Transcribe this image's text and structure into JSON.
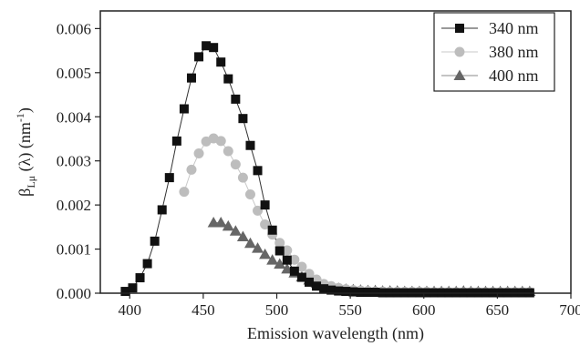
{
  "chart_data": {
    "type": "scatter",
    "title": "",
    "xlabel": "Emission wavelength (nm)",
    "ylabel": {
      "main": "β",
      "sub": "Lμ",
      "rest": " (λ) (nm",
      "sup": "-1",
      "close": ")"
    },
    "xlim": [
      380,
      700
    ],
    "ylim": [
      0,
      0.0064
    ],
    "x_ticks": [
      400,
      450,
      500,
      550,
      600,
      650,
      700
    ],
    "y_ticks": [
      0.0,
      0.001,
      0.002,
      0.003,
      0.004,
      0.005,
      0.006
    ],
    "y_tick_labels": [
      "0.000",
      "0.001",
      "0.002",
      "0.003",
      "0.004",
      "0.005",
      "0.006"
    ],
    "grid": false,
    "legend_position": "top-right",
    "series": [
      {
        "name": "340 nm",
        "marker": "square",
        "color": "#111111",
        "line_color": "#333333",
        "x": [
          397,
          402,
          407,
          412,
          417,
          422,
          427,
          432,
          437,
          442,
          447,
          452,
          457,
          462,
          467,
          472,
          477,
          482,
          487,
          492,
          497,
          502,
          507,
          512,
          517,
          522,
          527,
          532,
          537,
          542,
          547,
          552,
          557,
          562,
          567,
          572,
          577,
          582,
          587,
          592,
          597,
          602,
          607,
          612,
          617,
          622,
          627,
          632,
          637,
          642,
          647,
          652,
          657,
          662,
          667,
          672
        ],
        "y": [
          4e-05,
          0.00012,
          0.00035,
          0.00067,
          0.00118,
          0.00189,
          0.00262,
          0.00345,
          0.00418,
          0.00488,
          0.00536,
          0.00561,
          0.00557,
          0.00524,
          0.00486,
          0.0044,
          0.00396,
          0.00335,
          0.00278,
          0.002,
          0.00143,
          0.00096,
          0.00075,
          0.0005,
          0.00036,
          0.00025,
          0.00016,
          0.0001,
          7e-05,
          5e-05,
          4e-05,
          3e-05,
          2e-05,
          2e-05,
          2e-05,
          1e-05,
          1e-05,
          1e-05,
          1e-05,
          1e-05,
          1e-05,
          1e-05,
          1e-05,
          1e-05,
          1e-05,
          1e-05,
          1e-05,
          1e-05,
          1e-05,
          1e-05,
          1e-05,
          1e-05,
          1e-05,
          1e-05,
          1e-05,
          1e-05
        ]
      },
      {
        "name": "380 nm",
        "marker": "circle",
        "color": "#bdbdbd",
        "line_color": "#c8c8c8",
        "x": [
          437,
          442,
          447,
          452,
          457,
          462,
          467,
          472,
          477,
          482,
          487,
          492,
          497,
          502,
          507,
          512,
          517,
          522,
          527,
          532,
          537,
          542,
          547,
          552,
          557,
          562,
          567,
          572,
          577,
          582,
          587,
          592,
          597,
          602,
          607,
          612,
          617,
          622,
          627,
          632,
          637,
          642,
          647,
          652,
          657,
          662,
          667,
          672
        ],
        "y": [
          0.0023,
          0.0028,
          0.00317,
          0.00344,
          0.00351,
          0.00345,
          0.00322,
          0.00292,
          0.00262,
          0.00224,
          0.00187,
          0.00156,
          0.00133,
          0.00114,
          0.00097,
          0.00076,
          0.0006,
          0.00044,
          0.00031,
          0.00021,
          0.00016,
          0.00012,
          9e-05,
          7e-05,
          6e-05,
          5e-05,
          4e-05,
          4e-05,
          3e-05,
          3e-05,
          3e-05,
          3e-05,
          3e-05,
          3e-05,
          2e-05,
          2e-05,
          2e-05,
          2e-05,
          2e-05,
          2e-05,
          2e-05,
          2e-05,
          2e-05,
          2e-05,
          2e-05,
          2e-05,
          2e-05,
          2e-05
        ]
      },
      {
        "name": "400 nm",
        "marker": "triangle",
        "color": "#666666",
        "line_color": "#888888",
        "x": [
          457,
          462,
          467,
          472,
          477,
          482,
          487,
          492,
          497,
          502,
          507,
          512,
          517,
          522,
          527,
          532,
          537,
          542,
          547,
          552,
          557,
          562,
          567,
          572,
          577,
          582,
          587,
          592,
          597,
          602,
          607,
          612,
          617,
          622,
          627,
          632,
          637,
          642,
          647,
          652,
          657,
          662,
          667,
          672
        ],
        "y": [
          0.0016,
          0.0016,
          0.00152,
          0.00141,
          0.00128,
          0.00113,
          0.00102,
          0.00088,
          0.00075,
          0.00066,
          0.00055,
          0.00046,
          0.00037,
          0.0003,
          0.00023,
          0.00018,
          0.00014,
          0.00011,
          9e-05,
          8e-05,
          7e-05,
          6e-05,
          6e-05,
          5e-05,
          5e-05,
          5e-05,
          4e-05,
          4e-05,
          4e-05,
          4e-05,
          4e-05,
          4e-05,
          4e-05,
          4e-05,
          5e-05,
          4e-05,
          4e-05,
          4e-05,
          4e-05,
          4e-05,
          4e-05,
          4e-05,
          4e-05,
          4e-05
        ]
      }
    ]
  }
}
